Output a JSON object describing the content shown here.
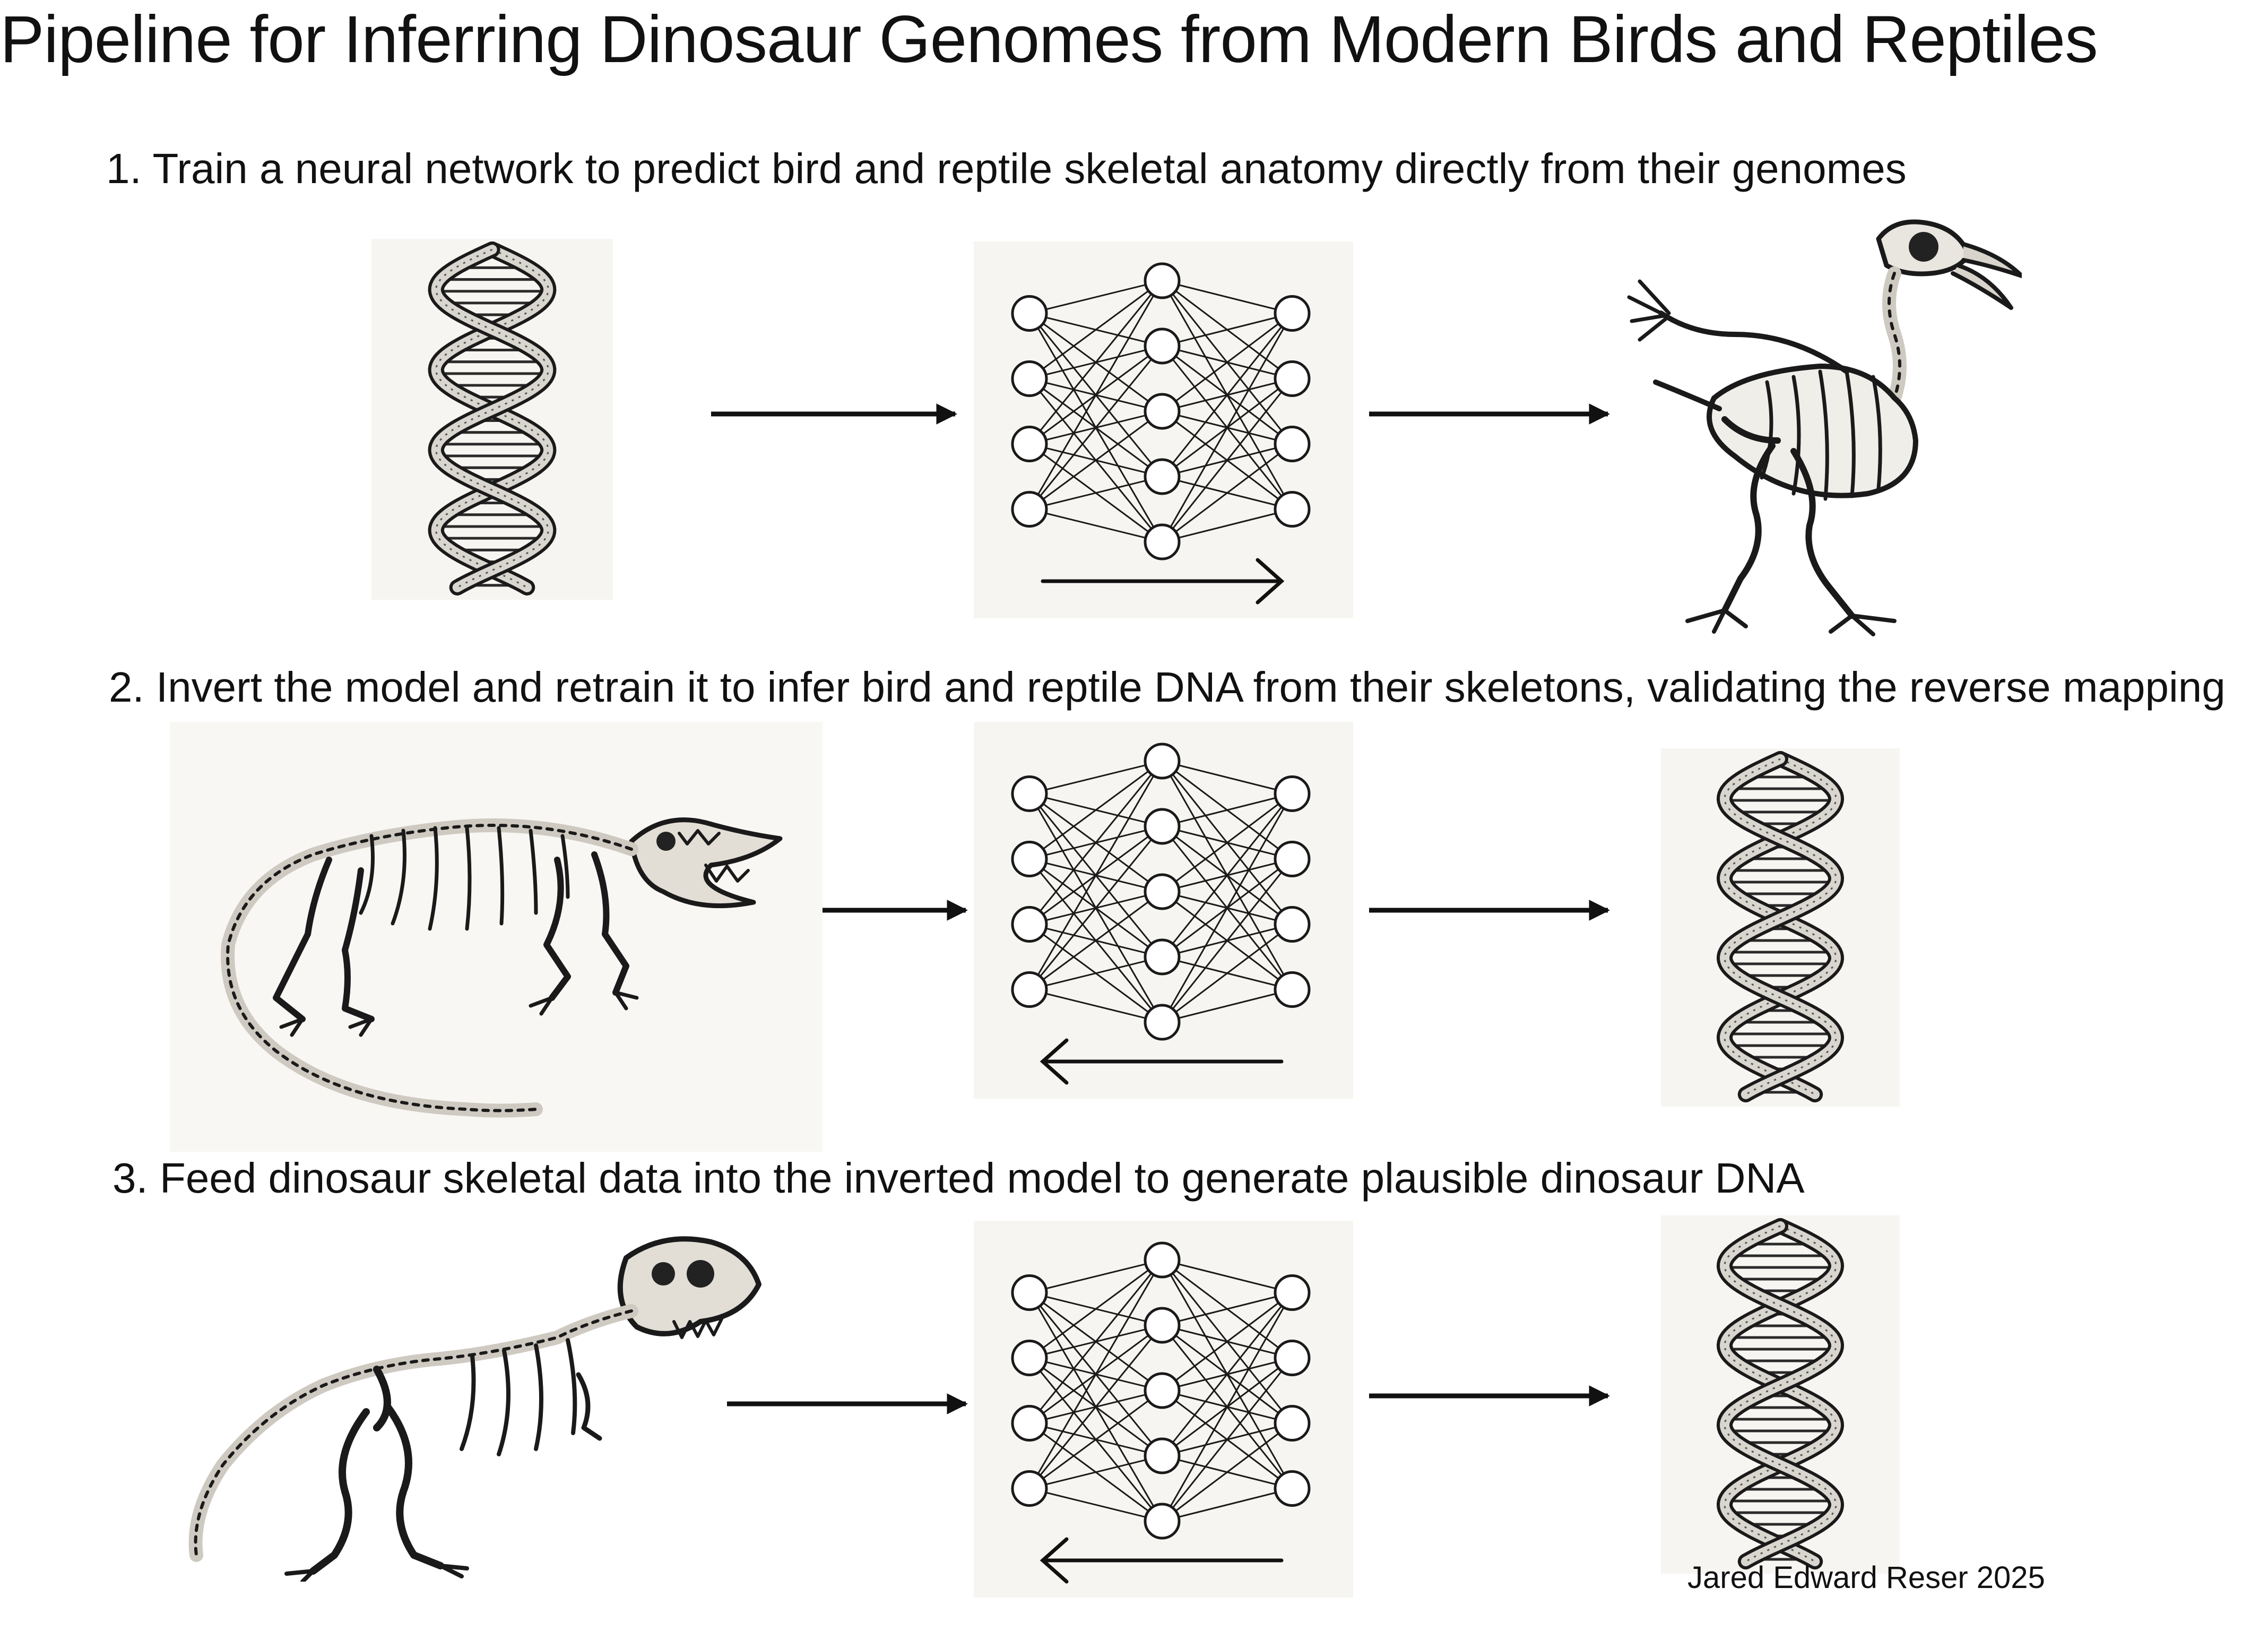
{
  "title": "Pipeline for Inferring Dinosaur Genomes from Modern Birds and Reptiles",
  "steps": [
    {
      "label": "1. Train a neural network to predict bird and reptile skeletal anatomy directly from their genomes",
      "input": "dna-helix-icon",
      "model_direction": "forward",
      "output": "bird-skeleton-illustration"
    },
    {
      "label": "2. Invert the model and retrain it to infer bird and reptile DNA from their skeletons, validating the reverse mapping",
      "input": "crocodile-skeleton-illustration",
      "model_direction": "reverse",
      "output": "dna-helix-icon"
    },
    {
      "label": "3. Feed dinosaur skeletal data into the inverted model to generate plausible dinosaur DNA",
      "input": "trex-skeleton-illustration",
      "model_direction": "reverse",
      "output": "dna-helix-icon"
    }
  ],
  "network": {
    "layer_sizes": [
      4,
      5,
      4
    ]
  },
  "credit": "Jared Edward Reser 2025",
  "colors": {
    "ink": "#111111",
    "panel": "#f7f5f1",
    "background": "#ffffff"
  }
}
